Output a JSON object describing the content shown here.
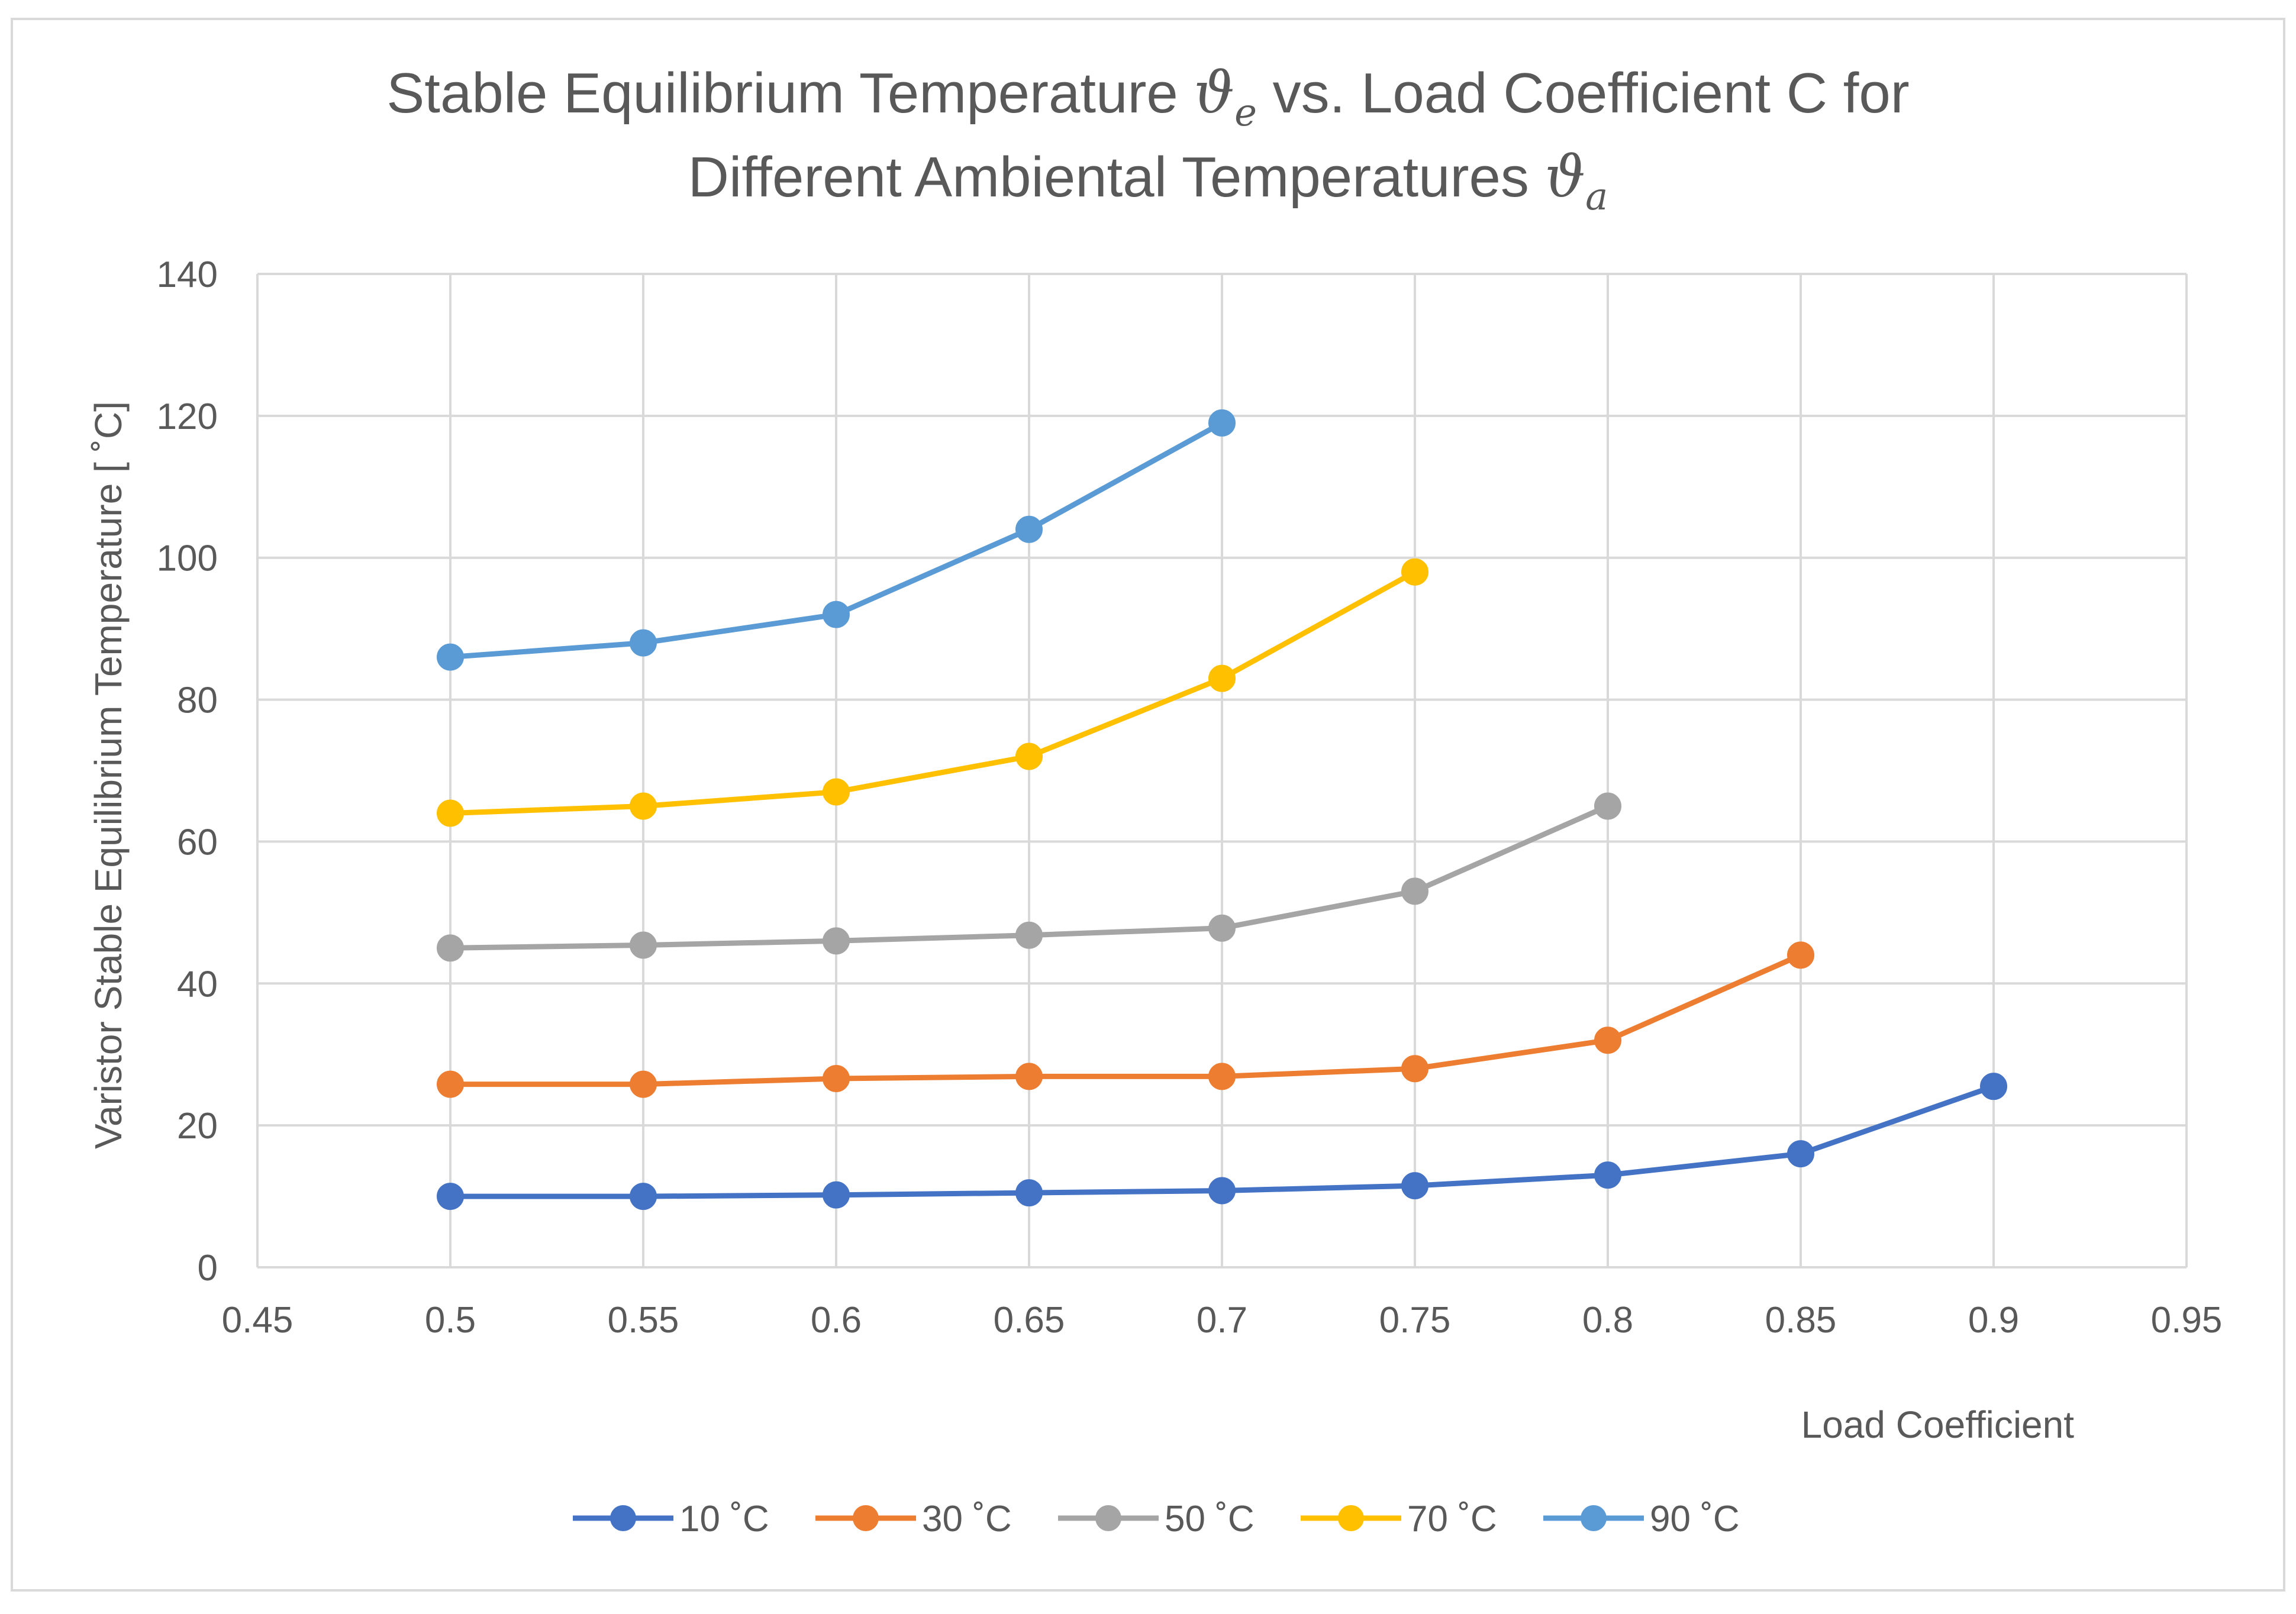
{
  "chart_data": {
    "type": "line",
    "title": {
      "line1": [
        "Stable Equilibrium Temperature ",
        "ϑ",
        "e",
        " vs. Load Coefficient C for"
      ],
      "line2": [
        "Different Ambiental Temperatures ",
        "ϑ",
        "a"
      ]
    },
    "xlabel": "Load Coefficient",
    "ylabel": "Varistor Stable Equilibrium Temperature [ ˚C]",
    "xlim": [
      0.45,
      0.95
    ],
    "ylim": [
      0,
      140
    ],
    "x_ticks": [
      "0.45",
      "0.5",
      "0.55",
      "0.6",
      "0.65",
      "0.7",
      "0.75",
      "0.8",
      "0.85",
      "0.9",
      "0.95"
    ],
    "y_ticks": [
      "0",
      "20",
      "40",
      "60",
      "80",
      "100",
      "120",
      "140"
    ],
    "grid": true,
    "legend_position": "bottom",
    "series": [
      {
        "name": "10 ˚C",
        "color": "#4472C4",
        "x": [
          0.5,
          0.55,
          0.6,
          0.65,
          0.7,
          0.75,
          0.8,
          0.85,
          0.9
        ],
        "values": [
          10,
          10,
          10.2,
          10.5,
          10.8,
          11.5,
          13,
          16,
          25.5
        ]
      },
      {
        "name": "30 ˚C",
        "color": "#ED7D31",
        "x": [
          0.5,
          0.55,
          0.6,
          0.65,
          0.7,
          0.75,
          0.8,
          0.85
        ],
        "values": [
          25.8,
          25.8,
          26.6,
          26.9,
          26.9,
          28,
          32,
          44
        ]
      },
      {
        "name": "50 ˚C",
        "color": "#A5A5A5",
        "x": [
          0.5,
          0.55,
          0.6,
          0.65,
          0.7,
          0.75,
          0.8
        ],
        "values": [
          45,
          45.4,
          46,
          46.8,
          47.8,
          53,
          65
        ]
      },
      {
        "name": "70 ˚C",
        "color": "#FFC000",
        "x": [
          0.5,
          0.55,
          0.6,
          0.65,
          0.7,
          0.75
        ],
        "values": [
          64,
          65,
          67,
          72,
          83,
          98
        ]
      },
      {
        "name": "90 ˚C",
        "color": "#5B9BD5",
        "x": [
          0.5,
          0.55,
          0.6,
          0.65,
          0.7
        ],
        "values": [
          86,
          88,
          92,
          104,
          119
        ]
      }
    ]
  }
}
